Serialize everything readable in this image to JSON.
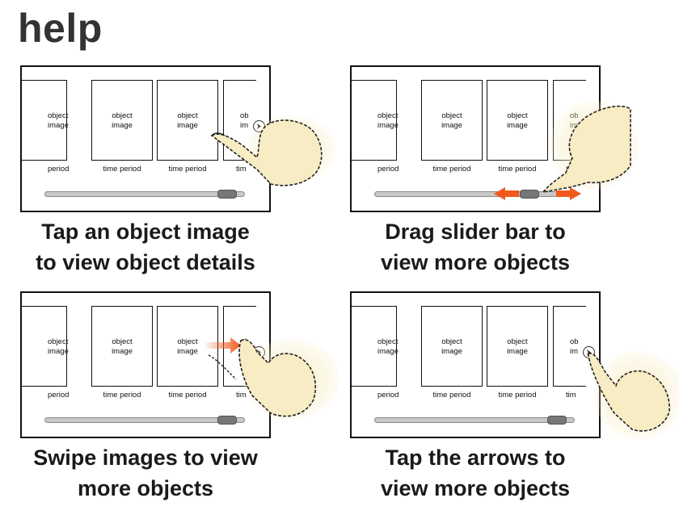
{
  "title": "help",
  "card": {
    "label_line1": "object",
    "label_line2": "image",
    "period": "time period",
    "period_partial_left": "period",
    "label_partial_right_line1": "ob",
    "label_partial_right_line2": "im",
    "period_partial_right": "tim"
  },
  "panels": [
    {
      "caption_line1": "Tap an object image",
      "caption_line2": "to view object details",
      "slider_position": 0.95
    },
    {
      "caption_line1": "Drag slider bar to",
      "caption_line2": "view more objects",
      "slider_position": 0.8
    },
    {
      "caption_line1": "Swipe images to view",
      "caption_line2": "more objects",
      "slider_position": 0.95
    },
    {
      "caption_line1": "Tap the arrows to",
      "caption_line2": "view more objects",
      "slider_position": 0.95
    }
  ],
  "colors": {
    "arrow_accent": "#f05a1e",
    "hand_fill": "#f8ecc4",
    "slider_thumb": "#777777"
  },
  "icons": [
    "left-arrow-icon",
    "right-arrow-icon",
    "hand-pointer-icon",
    "drag-arrows-icon",
    "swipe-arrow-icon"
  ]
}
